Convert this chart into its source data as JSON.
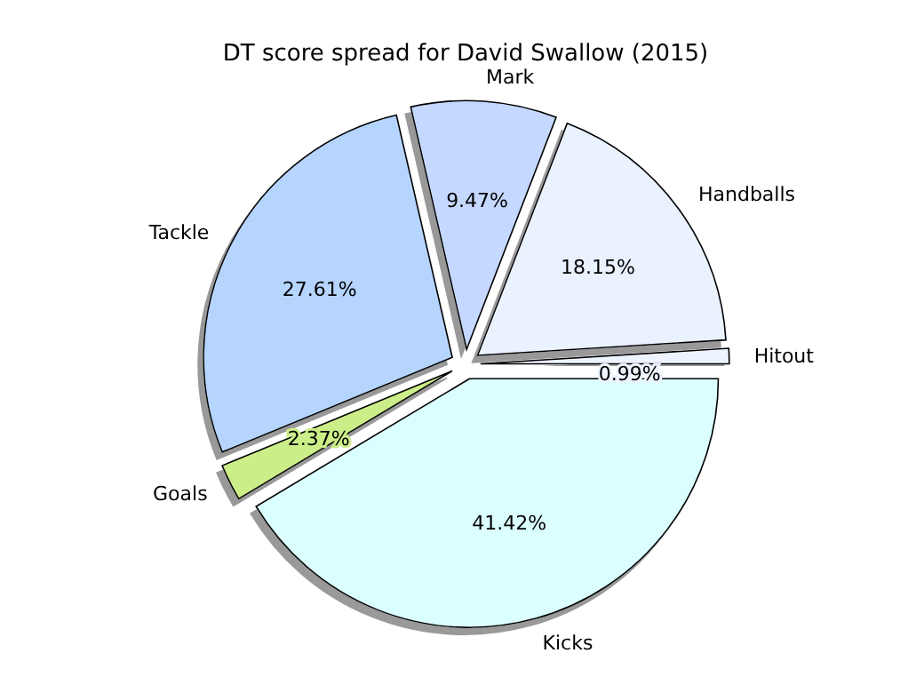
{
  "chart_data": {
    "type": "pie",
    "title": "DT score spread for David Swallow (2015)",
    "categories": [
      "Hitout",
      "Handballs",
      "Mark",
      "Tackle",
      "Goals",
      "Kicks"
    ],
    "values": [
      0.99,
      18.15,
      9.47,
      27.61,
      2.37,
      41.42
    ],
    "value_labels": [
      "0.99%",
      "18.15%",
      "9.47%",
      "27.61%",
      "2.37%",
      "41.42%"
    ],
    "colors": [
      "#eef4ff",
      "#eaf1ff",
      "#c5d8ff",
      "#b5d5ff",
      "#ccee88",
      "#dbffff"
    ]
  }
}
